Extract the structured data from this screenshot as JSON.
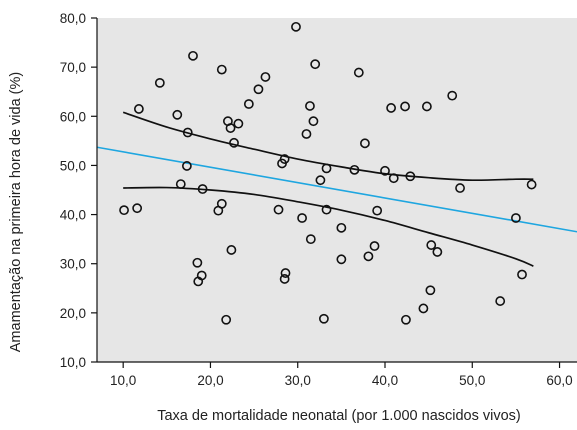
{
  "chart_data": {
    "type": "scatter",
    "title": "",
    "xlabel": "Taxa de mortalidade neonatal (por 1.000 nascidos vivos)",
    "ylabel": "Amamentação na primeira hora de vida (%)",
    "xlim": [
      7,
      62
    ],
    "ylim": [
      10,
      80
    ],
    "xticks": [
      10,
      20,
      30,
      40,
      50,
      60
    ],
    "yticks": [
      10,
      20,
      30,
      40,
      50,
      60,
      70,
      80
    ],
    "xtick_labels": [
      "10,0",
      "20,0",
      "30,0",
      "40,0",
      "50,0",
      "60,0"
    ],
    "ytick_labels": [
      "10,0",
      "20,0",
      "30,0",
      "40,0",
      "50,0",
      "60,0",
      "70,0",
      "80,0"
    ],
    "grid": false,
    "background_color": "#e6e6e6",
    "point_color": "#111111",
    "points": [
      {
        "x": 10.1,
        "y": 40.9
      },
      {
        "x": 11.6,
        "y": 41.3
      },
      {
        "x": 11.8,
        "y": 61.5
      },
      {
        "x": 14.2,
        "y": 66.8
      },
      {
        "x": 16.2,
        "y": 60.3
      },
      {
        "x": 16.6,
        "y": 46.2
      },
      {
        "x": 17.3,
        "y": 49.9
      },
      {
        "x": 17.4,
        "y": 56.7
      },
      {
        "x": 18.0,
        "y": 72.3
      },
      {
        "x": 18.5,
        "y": 30.2
      },
      {
        "x": 18.6,
        "y": 26.4
      },
      {
        "x": 19.0,
        "y": 27.6
      },
      {
        "x": 19.1,
        "y": 45.2
      },
      {
        "x": 20.9,
        "y": 40.8
      },
      {
        "x": 21.3,
        "y": 42.2
      },
      {
        "x": 21.3,
        "y": 69.5
      },
      {
        "x": 21.8,
        "y": 18.6
      },
      {
        "x": 22.0,
        "y": 59.0
      },
      {
        "x": 22.3,
        "y": 57.6
      },
      {
        "x": 22.4,
        "y": 32.8
      },
      {
        "x": 22.7,
        "y": 54.6
      },
      {
        "x": 23.2,
        "y": 58.5
      },
      {
        "x": 24.4,
        "y": 62.5
      },
      {
        "x": 25.5,
        "y": 65.5
      },
      {
        "x": 26.3,
        "y": 68.0
      },
      {
        "x": 27.8,
        "y": 41.0
      },
      {
        "x": 28.2,
        "y": 50.4
      },
      {
        "x": 28.5,
        "y": 51.3
      },
      {
        "x": 28.5,
        "y": 26.9
      },
      {
        "x": 28.6,
        "y": 28.1
      },
      {
        "x": 29.8,
        "y": 78.2
      },
      {
        "x": 30.5,
        "y": 39.3
      },
      {
        "x": 31.0,
        "y": 56.4
      },
      {
        "x": 31.4,
        "y": 62.1
      },
      {
        "x": 31.5,
        "y": 35.0
      },
      {
        "x": 31.8,
        "y": 59.0
      },
      {
        "x": 32.0,
        "y": 70.6
      },
      {
        "x": 32.6,
        "y": 47.0
      },
      {
        "x": 33.0,
        "y": 18.8
      },
      {
        "x": 33.3,
        "y": 49.4
      },
      {
        "x": 33.3,
        "y": 41.0
      },
      {
        "x": 35.0,
        "y": 37.3
      },
      {
        "x": 35.0,
        "y": 30.9
      },
      {
        "x": 36.5,
        "y": 49.1
      },
      {
        "x": 37.0,
        "y": 68.9
      },
      {
        "x": 37.7,
        "y": 54.5
      },
      {
        "x": 38.1,
        "y": 31.5
      },
      {
        "x": 38.8,
        "y": 33.6
      },
      {
        "x": 39.1,
        "y": 40.8
      },
      {
        "x": 40.0,
        "y": 48.9
      },
      {
        "x": 40.7,
        "y": 61.7
      },
      {
        "x": 41.0,
        "y": 47.4
      },
      {
        "x": 42.3,
        "y": 62.0
      },
      {
        "x": 42.4,
        "y": 18.6
      },
      {
        "x": 42.9,
        "y": 47.8
      },
      {
        "x": 44.4,
        "y": 20.9
      },
      {
        "x": 44.8,
        "y": 62.0
      },
      {
        "x": 45.2,
        "y": 24.6
      },
      {
        "x": 45.3,
        "y": 33.8
      },
      {
        "x": 46.0,
        "y": 32.4
      },
      {
        "x": 47.7,
        "y": 64.2
      },
      {
        "x": 48.6,
        "y": 45.4
      },
      {
        "x": 53.2,
        "y": 22.4
      },
      {
        "x": 55.0,
        "y": 39.3
      },
      {
        "x": 55.7,
        "y": 27.8
      },
      {
        "x": 56.8,
        "y": 46.1
      }
    ],
    "series": [
      {
        "role": "regression",
        "color": "#1ea6e0",
        "x": [
          7,
          62
        ],
        "y": [
          53.7,
          36.5
        ]
      },
      {
        "role": "upper-confidence-band",
        "color": "#111111",
        "x": [
          10,
          15,
          20,
          25,
          30,
          35,
          40,
          45,
          50,
          55,
          57
        ],
        "y": [
          60.8,
          57.8,
          55.4,
          53.3,
          51.3,
          49.7,
          48.3,
          47.5,
          47.0,
          47.2,
          47.2
        ]
      },
      {
        "role": "lower-confidence-band",
        "color": "#111111",
        "x": [
          10,
          15,
          20,
          25,
          30,
          35,
          40,
          45,
          50,
          55,
          57
        ],
        "y": [
          45.4,
          45.5,
          45.0,
          44.1,
          42.6,
          40.9,
          38.8,
          36.3,
          33.8,
          31.0,
          29.5
        ]
      }
    ]
  }
}
